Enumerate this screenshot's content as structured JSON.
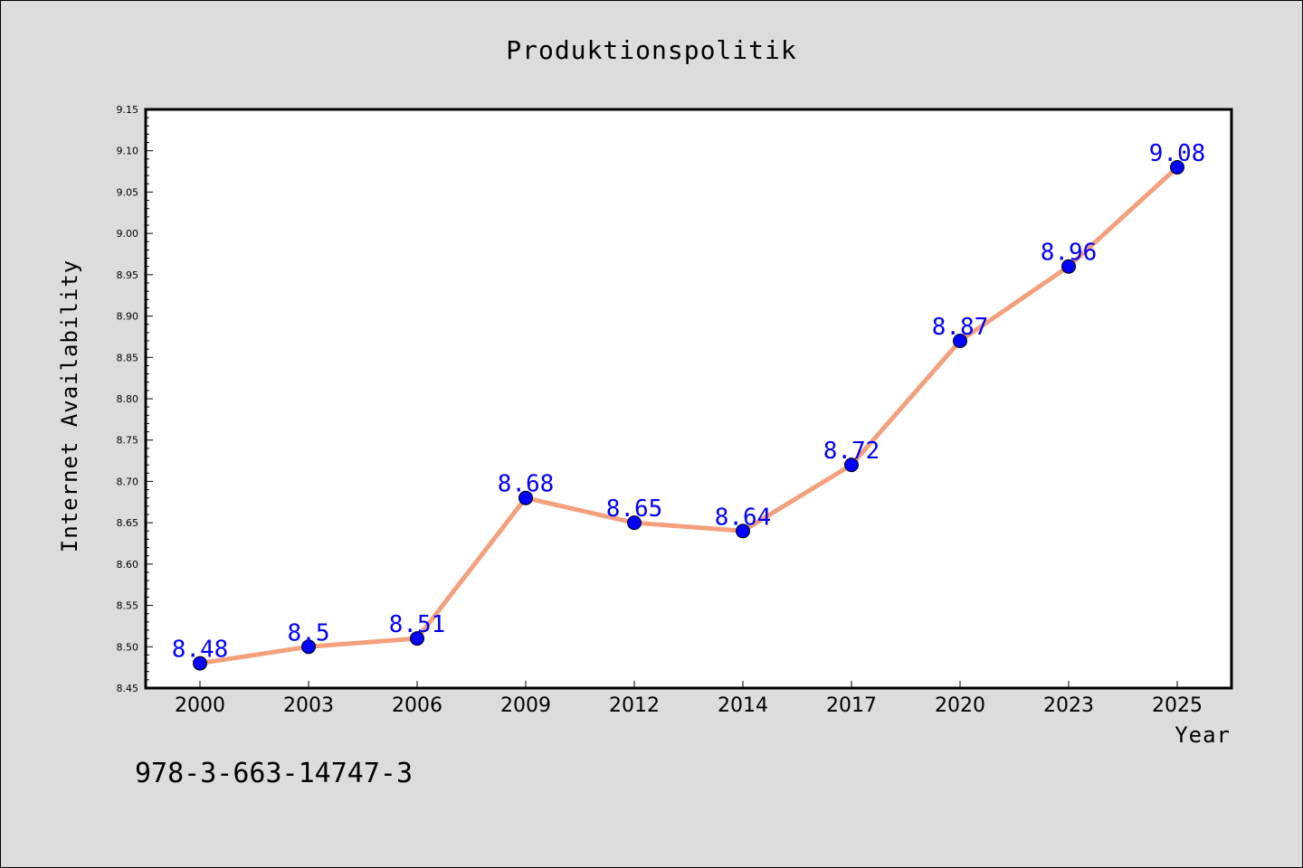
{
  "chart_data": {
    "type": "line",
    "title": "Produktionspolitik",
    "xlabel": "Year",
    "ylabel": "Internet Availability",
    "categories": [
      "2000",
      "2003",
      "2006",
      "2009",
      "2012",
      "2014",
      "2017",
      "2020",
      "2023",
      "2025"
    ],
    "series": [
      {
        "values": [
          8.48,
          8.5,
          8.51,
          8.68,
          8.65,
          8.64,
          8.72,
          8.87,
          8.96,
          9.08
        ]
      }
    ],
    "data_labels": [
      "8.48",
      "8.5",
      "8.51",
      "8.68",
      "8.65",
      "8.64",
      "8.72",
      "8.87",
      "8.96",
      "9.08"
    ],
    "ylim": [
      8.45,
      9.15
    ],
    "yticks": [
      "8.45",
      "8.50",
      "8.55",
      "8.60",
      "8.65",
      "8.70",
      "8.75",
      "8.80",
      "8.85",
      "8.90",
      "8.95",
      "9.00",
      "9.05",
      "9.10",
      "9.15"
    ],
    "grid": false,
    "legend": "none",
    "colors": {
      "line": "#f4a07c",
      "marker": "#0000ff",
      "label": "#0000ff",
      "background": "#dcdcdc",
      "plot_background": "#ffffff"
    }
  },
  "footer": {
    "isbn": "978-3-663-14747-3"
  }
}
